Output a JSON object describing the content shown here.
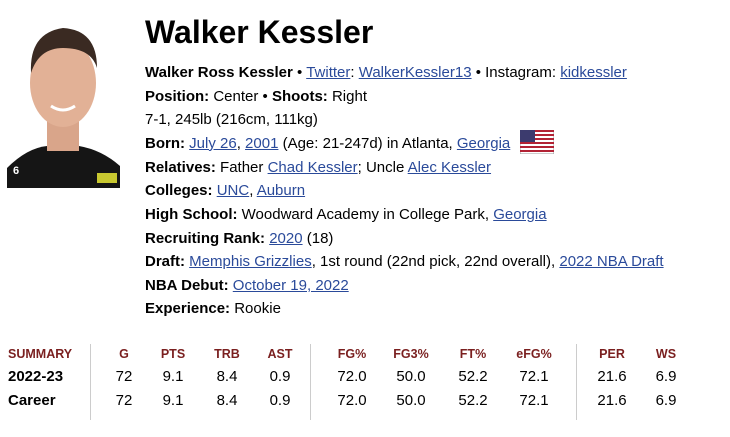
{
  "player": {
    "name": "Walker Kessler",
    "full_name": "Walker Ross Kessler",
    "twitter_label": "Twitter",
    "twitter_handle": "WalkerKessler13",
    "instagram_label": "Instagram:",
    "instagram_handle": "kidkessler",
    "position_label": "Position:",
    "position": "Center",
    "shoots_label": "Shoots:",
    "shoots": "Right",
    "size": "7-1, 245lb (216cm, 111kg)",
    "born_label": "Born:",
    "born_date": "July 26",
    "born_year": "2001",
    "age": "(Age: 21-247d) in Atlanta,",
    "born_state": "Georgia",
    "relatives_label": "Relatives:",
    "father_prefix": "Father",
    "father": "Chad Kessler",
    "uncle_prefix": "; Uncle",
    "uncle": "Alec Kessler",
    "colleges_label": "Colleges:",
    "college1": "UNC",
    "college2": "Auburn",
    "hs_label": "High School:",
    "hs": "Woodward Academy in College Park,",
    "hs_state": "Georgia",
    "recruiting_label": "Recruiting Rank:",
    "recruiting_year": "2020",
    "recruiting_rank": "(18)",
    "draft_label": "Draft:",
    "draft_team": "Memphis Grizzlies",
    "draft_detail": ", 1st round (22nd pick, 22nd overall),",
    "draft_link": "2022 NBA Draft",
    "debut_label": "NBA Debut:",
    "debut": "October 19, 2022",
    "experience_label": "Experience:",
    "experience": "Rookie"
  },
  "summary": {
    "headers": [
      "SUMMARY",
      "G",
      "PTS",
      "TRB",
      "AST",
      "FG%",
      "FG3%",
      "FT%",
      "eFG%",
      "PER",
      "WS"
    ],
    "rows": [
      [
        "2022-23",
        "72",
        "9.1",
        "8.4",
        "0.9",
        "72.0",
        "50.0",
        "52.2",
        "72.1",
        "21.6",
        "6.9"
      ],
      [
        "Career",
        "72",
        "9.1",
        "8.4",
        "0.9",
        "72.0",
        "50.0",
        "52.2",
        "72.1",
        "21.6",
        "6.9"
      ]
    ],
    "header_color": "#7a1f1f"
  }
}
